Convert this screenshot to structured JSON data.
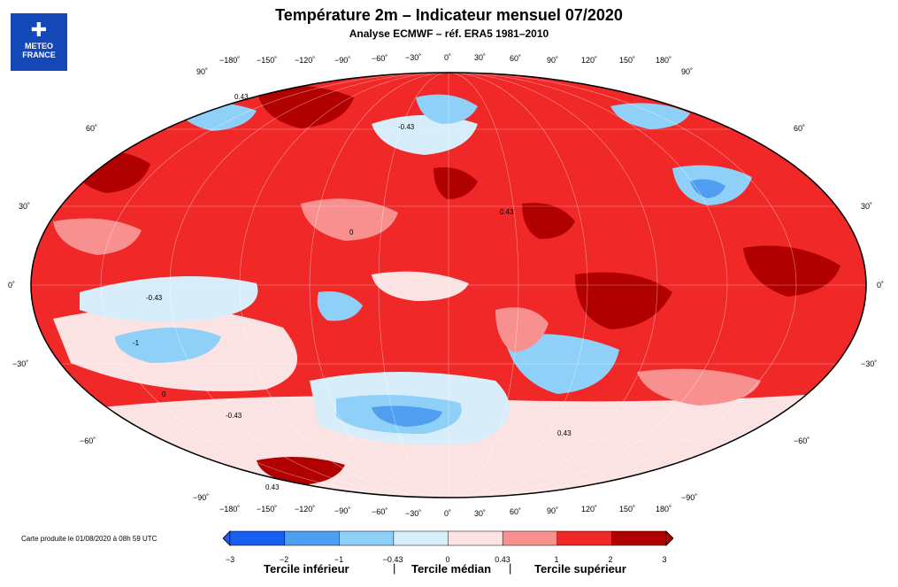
{
  "title": "Température 2m – Indicateur mensuel 07/2020",
  "subtitle": "Analyse ECMWF – réf. ERA5 1981–2010",
  "logo": {
    "line1": "METEO",
    "line2": "FRANCE"
  },
  "credit": "Carte produite le 01/08/2020 à 08h 59 UTC",
  "lon_labels": [
    "−180˚",
    "−150˚",
    "−120˚",
    "−90˚",
    "−60˚",
    "−30˚",
    "0˚",
    "30˚",
    "60˚",
    "90˚",
    "120˚",
    "150˚",
    "180˚"
  ],
  "lat_labels_left": [
    "90˚",
    "60˚",
    "30˚",
    "0˚",
    "−30˚",
    "−60˚",
    "−90˚"
  ],
  "lat_labels_right": [
    "90˚",
    "60˚",
    "30˚",
    "0˚",
    "−30˚",
    "−60˚",
    "−90˚"
  ],
  "contour_labels": [
    "0.43",
    "-0.43",
    "0",
    "-1",
    "0.43",
    "-0.43",
    "0.43",
    "0",
    "0.43",
    "-0.43"
  ],
  "legend": {
    "ticks": [
      "−3",
      "−2",
      "−1",
      "−0.43",
      "0",
      "0.43",
      "1",
      "2",
      "3"
    ],
    "colors": [
      "#1a5ef0",
      "#4f9ef0",
      "#8fd0f8",
      "#d7eefa",
      "#fbe3e3",
      "#f89090",
      "#f02828",
      "#b00000"
    ],
    "tercile_low": "Tercile inférieur",
    "tercile_mid": "Tercile médian",
    "tercile_high": "Tercile supérieur",
    "separator": "|"
  }
}
